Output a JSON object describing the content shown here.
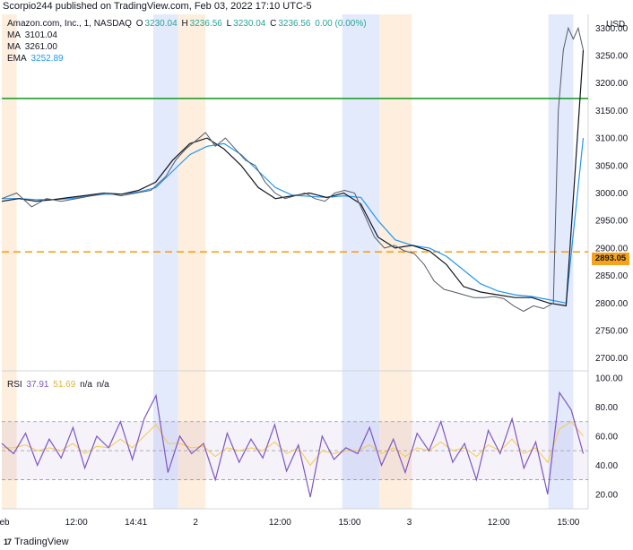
{
  "header": {
    "text": "Scorpio244 published on TradingView.com, Feb 03, 2022 17:10 UTC-5"
  },
  "legend": {
    "symbol": "Amazon.com, Inc., 1, NASDAQ",
    "o_label": "O",
    "o": "3230.04",
    "h_label": "H",
    "h": "3236.56",
    "l_label": "L",
    "l": "3230.04",
    "c_label": "C",
    "c": "3236.56",
    "change": "0.00 (0.00%)",
    "ma1_label": "MA",
    "ma1": "3101.04",
    "ma2_label": "MA",
    "ma2": "3261.00",
    "ema_label": "EMA",
    "ema": "3252.89"
  },
  "rsi_legend": {
    "label": "RSI",
    "rsi": "37.91",
    "rsi_ma": "51.69",
    "na1": "n/a",
    "na2": "n/a"
  },
  "currency": "USD",
  "price_tag": "2893.05",
  "footer": {
    "brand": "TradingView",
    "logo_text": "17"
  },
  "colors": {
    "price_line": "#131722",
    "ma_fast": "#131722",
    "ema": "#2196f3",
    "hline_green": "#1f9d2c",
    "hline_orange": "#f7a21b",
    "rsi": "#7e57c2",
    "rsi_ma": "#f7c948",
    "session_blue": "#e3eafc",
    "session_orange": "#fdeedd"
  },
  "chart_data": [
    {
      "type": "line",
      "title": "Amazon.com, Inc., 1, NASDAQ",
      "y_axis_ticks": [
        2700,
        2750,
        2800,
        2850,
        2900,
        2950,
        3000,
        3050,
        3100,
        3150,
        3200,
        3250,
        3300
      ],
      "x_axis_ticks": [
        "Feb",
        "12:00",
        "14:41",
        "2",
        "12:00",
        "15:00",
        "3",
        "12:00",
        "15:00"
      ],
      "ylim": [
        2680,
        3325
      ],
      "horizontal_lines": [
        {
          "value": 3172,
          "color": "#1f9d2c",
          "style": "solid"
        },
        {
          "value": 2893.05,
          "color": "#f7a21b",
          "style": "dashed"
        }
      ],
      "series": [
        {
          "name": "MA",
          "values": [
            2985,
            2990,
            2985,
            2988,
            2992,
            2996,
            3000,
            2998,
            3005,
            3020,
            3060,
            3090,
            3100,
            3080,
            3050,
            3010,
            2990,
            2995,
            3000,
            2992,
            3000,
            2980,
            2920,
            2900,
            2905,
            2895,
            2870,
            2830,
            2820,
            2815,
            2810,
            2810,
            2800,
            2795,
            3260
          ]
        },
        {
          "name": "EMA",
          "values": [
            2990,
            2990,
            2988,
            2988,
            2990,
            2994,
            2998,
            2998,
            3002,
            3010,
            3040,
            3070,
            3085,
            3090,
            3070,
            3040,
            3010,
            2996,
            2994,
            2992,
            2995,
            2992,
            2950,
            2915,
            2905,
            2900,
            2885,
            2860,
            2835,
            2822,
            2815,
            2812,
            2806,
            2800,
            3100
          ]
        }
      ],
      "price": [
        [
          0,
          2990
        ],
        [
          3,
          3000
        ],
        [
          6,
          2975
        ],
        [
          9,
          2990
        ],
        [
          12,
          2985
        ],
        [
          15,
          2990
        ],
        [
          18,
          2995
        ],
        [
          21,
          3000
        ],
        [
          24,
          2995
        ],
        [
          27,
          3000
        ],
        [
          30,
          3005
        ],
        [
          33,
          3030
        ],
        [
          35,
          3060
        ],
        [
          37,
          3080
        ],
        [
          39,
          3095
        ],
        [
          41,
          3110
        ],
        [
          43,
          3085
        ],
        [
          45,
          3100
        ],
        [
          47,
          3080
        ],
        [
          49,
          3060
        ],
        [
          51,
          3050
        ],
        [
          53,
          3020
        ],
        [
          55,
          3000
        ],
        [
          57,
          2990
        ],
        [
          59,
          2995
        ],
        [
          61,
          3000
        ],
        [
          63,
          2990
        ],
        [
          65,
          2985
        ],
        [
          67,
          3000
        ],
        [
          69,
          3005
        ],
        [
          71,
          3000
        ],
        [
          73,
          2960
        ],
        [
          75,
          2920
        ],
        [
          77,
          2900
        ],
        [
          79,
          2905
        ],
        [
          81,
          2895
        ],
        [
          83,
          2890
        ],
        [
          85,
          2870
        ],
        [
          87,
          2840
        ],
        [
          89,
          2825
        ],
        [
          91,
          2820
        ],
        [
          93,
          2815
        ],
        [
          95,
          2810
        ],
        [
          97,
          2810
        ],
        [
          99,
          2812
        ],
        [
          101,
          2808
        ],
        [
          103,
          2795
        ],
        [
          105,
          2785
        ],
        [
          107,
          2795
        ],
        [
          109,
          2790
        ],
        [
          111,
          2800
        ],
        [
          112,
          3150
        ],
        [
          113,
          3260
        ],
        [
          114,
          3300
        ],
        [
          115,
          3280
        ],
        [
          116,
          3300
        ],
        [
          117,
          3260
        ]
      ]
    },
    {
      "type": "line",
      "title": "RSI",
      "y_axis_ticks": [
        20,
        40,
        60,
        80,
        100
      ],
      "ylim": [
        10,
        105
      ],
      "bands": [
        30,
        50,
        70
      ],
      "series": [
        {
          "name": "RSI",
          "values": [
            55,
            48,
            62,
            40,
            58,
            45,
            66,
            38,
            60,
            52,
            70,
            44,
            72,
            88,
            35,
            60,
            48,
            55,
            30,
            62,
            42,
            58,
            45,
            68,
            36,
            54,
            18,
            60,
            44,
            52,
            48,
            66,
            40,
            58,
            35,
            62,
            50,
            70,
            42,
            55,
            30,
            64,
            48,
            72,
            38,
            56,
            20,
            90,
            78,
            48
          ]
        },
        {
          "name": "RSI MA",
          "values": [
            52,
            52,
            54,
            50,
            52,
            50,
            55,
            48,
            53,
            52,
            58,
            52,
            60,
            68,
            55,
            55,
            52,
            53,
            46,
            52,
            50,
            52,
            50,
            56,
            48,
            52,
            40,
            50,
            48,
            50,
            50,
            54,
            48,
            52,
            46,
            52,
            50,
            56,
            50,
            52,
            46,
            54,
            50,
            58,
            48,
            52,
            42,
            65,
            70,
            60
          ]
        }
      ]
    }
  ]
}
